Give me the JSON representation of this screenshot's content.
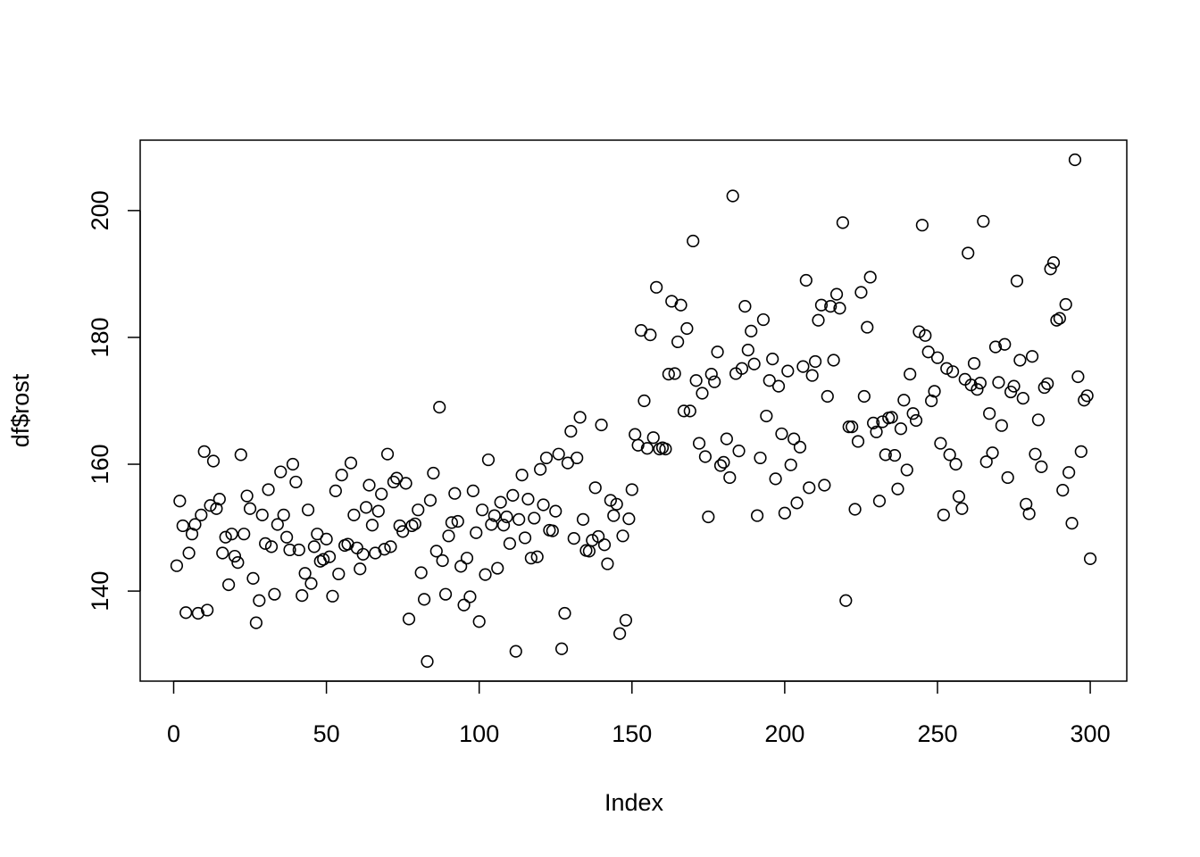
{
  "chart_data": {
    "type": "scatter",
    "x_label": "Index",
    "y_label": "df$rost",
    "xlim": [
      -10.96,
      311.96
    ],
    "ylim": [
      125.8,
      211.1
    ],
    "xticks": [
      0,
      50,
      100,
      150,
      200,
      250,
      300
    ],
    "yticks": [
      140,
      160,
      180,
      200
    ],
    "color": "#000000",
    "x": [
      1,
      2,
      3,
      4,
      5,
      6,
      7,
      8,
      9,
      10,
      11,
      12,
      13,
      14,
      15,
      16,
      17,
      18,
      19,
      20,
      21,
      22,
      23,
      24,
      25,
      26,
      27,
      28,
      29,
      30,
      31,
      32,
      33,
      34,
      35,
      36,
      37,
      38,
      39,
      40,
      41,
      42,
      43,
      44,
      45,
      46,
      47,
      48,
      49,
      50,
      51,
      52,
      53,
      54,
      55,
      56,
      57,
      58,
      59,
      60,
      61,
      62,
      63,
      64,
      65,
      66,
      67,
      68,
      69,
      70,
      71,
      72,
      73,
      74,
      75,
      76,
      77,
      78,
      79,
      80,
      81,
      82,
      83,
      84,
      85,
      86,
      87,
      88,
      89,
      90,
      91,
      92,
      93,
      94,
      95,
      96,
      97,
      98,
      99,
      100,
      101,
      102,
      103,
      104,
      105,
      106,
      107,
      108,
      109,
      110,
      111,
      112,
      113,
      114,
      115,
      116,
      117,
      118,
      119,
      120,
      121,
      122,
      123,
      124,
      125,
      126,
      127,
      128,
      129,
      130,
      131,
      132,
      133,
      134,
      135,
      136,
      137,
      138,
      139,
      140,
      141,
      142,
      143,
      144,
      145,
      146,
      147,
      148,
      149,
      150,
      151,
      152,
      153,
      154,
      155,
      156,
      157,
      158,
      159,
      160,
      161,
      162,
      163,
      164,
      165,
      166,
      167,
      168,
      169,
      170,
      171,
      172,
      173,
      174,
      175,
      176,
      177,
      178,
      179,
      180,
      181,
      182,
      183,
      184,
      185,
      186,
      187,
      188,
      189,
      190,
      191,
      192,
      193,
      194,
      195,
      196,
      197,
      198,
      199,
      200,
      201,
      202,
      203,
      204,
      205,
      206,
      207,
      208,
      209,
      210,
      211,
      212,
      213,
      214,
      215,
      216,
      217,
      218,
      219,
      220,
      221,
      222,
      223,
      224,
      225,
      226,
      227,
      228,
      229,
      230,
      231,
      232,
      233,
      234,
      235,
      236,
      237,
      238,
      239,
      240,
      241,
      242,
      243,
      244,
      245,
      246,
      247,
      248,
      249,
      250,
      251,
      252,
      253,
      254,
      255,
      256,
      257,
      258,
      259,
      260,
      261,
      262,
      263,
      264,
      265,
      266,
      267,
      268,
      269,
      270,
      271,
      272,
      273,
      274,
      275,
      276,
      277,
      278,
      279,
      280,
      281,
      282,
      283,
      284,
      285,
      286,
      287,
      288,
      289,
      290,
      291,
      292,
      293,
      294,
      295,
      296,
      297,
      298,
      299,
      300
    ],
    "values": [
      144,
      154.2,
      150.3,
      136.6,
      146,
      149,
      150.5,
      136.5,
      152,
      162,
      137,
      153.5,
      160.5,
      153,
      154.5,
      146,
      148.5,
      141,
      149,
      145.5,
      144.5,
      161.5,
      149,
      155,
      153,
      142,
      135,
      138.5,
      152,
      147.5,
      156,
      147,
      139.5,
      150.5,
      158.8,
      152,
      148.5,
      146.5,
      160,
      157.2,
      146.5,
      139.3,
      142.8,
      152.8,
      141.2,
      147,
      149,
      144.7,
      145,
      148.2,
      145.4,
      139.2,
      155.8,
      142.7,
      158.3,
      147.2,
      147.4,
      160.2,
      152,
      146.8,
      143.5,
      145.8,
      153.2,
      156.7,
      150.4,
      146,
      152.6,
      155.3,
      146.6,
      161.6,
      147,
      157.2,
      157.8,
      150.3,
      149.4,
      157,
      135.6,
      150.3,
      150.6,
      152.8,
      142.9,
      138.7,
      128.9,
      154.3,
      158.6,
      146.3,
      169,
      144.8,
      139.5,
      148.7,
      150.8,
      155.4,
      151,
      143.9,
      137.8,
      145.2,
      139.1,
      155.8,
      149.2,
      135.2,
      152.8,
      142.6,
      160.7,
      150.5,
      151.9,
      143.6,
      154,
      150.4,
      151.7,
      147.5,
      155.1,
      130.5,
      151.3,
      158.3,
      148.4,
      154.5,
      145.2,
      151.5,
      145.4,
      159.2,
      153.6,
      161,
      149.6,
      149.5,
      152.6,
      161.6,
      130.9,
      136.5,
      160.2,
      165.2,
      148.3,
      161,
      167.4,
      151.3,
      146.4,
      146.3,
      148,
      156.3,
      148.6,
      166.2,
      147.3,
      144.3,
      154.3,
      151.9,
      153.7,
      133.3,
      148.7,
      135.4,
      151.4,
      156,
      164.7,
      163,
      181.1,
      170,
      162.5,
      180.4,
      164.2,
      187.9,
      162.4,
      162.6,
      162.4,
      174.2,
      185.7,
      174.3,
      179.3,
      185.1,
      168.4,
      181.4,
      168.4,
      195.2,
      173.2,
      163.3,
      171.2,
      161.2,
      151.7,
      174.2,
      173,
      177.7,
      159.8,
      160.3,
      164,
      157.9,
      202.3,
      174.3,
      162.1,
      175.1,
      184.9,
      178,
      181,
      175.8,
      151.9,
      161,
      182.8,
      167.6,
      173.2,
      176.6,
      157.7,
      172.3,
      164.8,
      152.3,
      174.7,
      159.9,
      164,
      153.9,
      162.7,
      175.4,
      189,
      156.3,
      174,
      176.2,
      182.7,
      185.1,
      156.7,
      170.7,
      184.9,
      176.4,
      186.8,
      184.6,
      198.1,
      138.5,
      165.9,
      165.9,
      152.9,
      163.6,
      187.1,
      170.7,
      181.6,
      189.5,
      166.5,
      165.1,
      154.2,
      166.7,
      161.5,
      167.3,
      167.4,
      161.4,
      156.1,
      165.6,
      170.1,
      159.1,
      174.2,
      168,
      166.9,
      180.9,
      197.7,
      180.3,
      177.7,
      170,
      171.5,
      176.8,
      163.3,
      152,
      175.1,
      161.5,
      174.6,
      160,
      154.9,
      153,
      173.4,
      193.3,
      172.5,
      175.9,
      171.8,
      172.8,
      198.3,
      160.4,
      168,
      161.8,
      178.5,
      172.9,
      166.1,
      178.9,
      157.9,
      171.4,
      172.3,
      188.9,
      176.4,
      170.4,
      153.7,
      152.2,
      177,
      161.6,
      167,
      159.6,
      172.1,
      172.7,
      190.8,
      191.8,
      182.7,
      183,
      155.9,
      185.2,
      158.7,
      150.7,
      208,
      173.8,
      162,
      170.1,
      170.8,
      145.1
    ]
  }
}
